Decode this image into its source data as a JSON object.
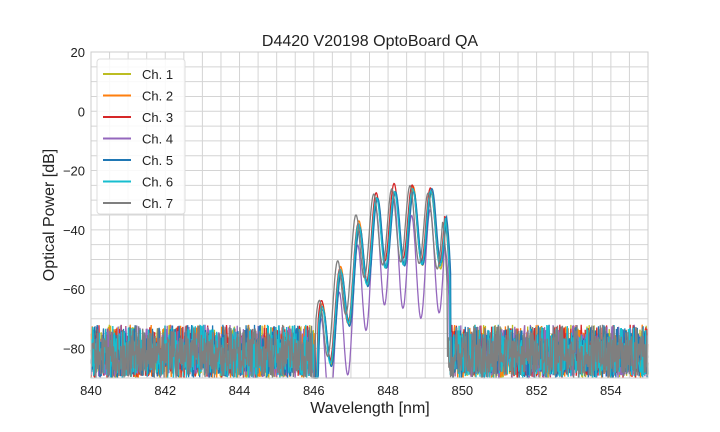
{
  "chart_data": {
    "type": "line",
    "title": "D4420 V20198 OptoBoard QA",
    "xlabel": "Wavelength [nm]",
    "ylabel": "Optical Power [dB]",
    "xlim": [
      840,
      855
    ],
    "ylim": [
      -90,
      20
    ],
    "xticks": [
      "840",
      "842",
      "844",
      "846",
      "848",
      "850",
      "852",
      "854"
    ],
    "yticks": [
      "20",
      "0",
      "−20",
      "−40",
      "−60",
      "−80"
    ],
    "grid": true,
    "legend": "top-left",
    "noise_floor_db": [
      -90,
      -72
    ],
    "series": [
      {
        "name": "Ch. 1",
        "color": "#bcbd22",
        "shift": 0.03,
        "peaks": [
          [
            846.2,
            -66
          ],
          [
            846.75,
            -53
          ],
          [
            847.25,
            -36
          ],
          [
            847.75,
            -28
          ],
          [
            848.25,
            -27
          ],
          [
            848.7,
            -26
          ],
          [
            849.2,
            -28
          ]
        ]
      },
      {
        "name": "Ch. 2",
        "color": "#ff7f0e",
        "shift": 0.02,
        "peaks": [
          [
            846.2,
            -65
          ],
          [
            846.75,
            -51
          ],
          [
            847.25,
            -35
          ],
          [
            847.75,
            -28
          ],
          [
            848.25,
            -27
          ],
          [
            848.7,
            -25
          ],
          [
            849.2,
            -27
          ]
        ]
      },
      {
        "name": "Ch. 3",
        "color": "#d62728",
        "shift": 0.0,
        "peaks": [
          [
            846.2,
            -64
          ],
          [
            846.75,
            -52
          ],
          [
            847.25,
            -36
          ],
          [
            847.75,
            -26
          ],
          [
            848.25,
            -24
          ],
          [
            848.7,
            -25
          ],
          [
            849.2,
            -26
          ]
        ]
      },
      {
        "name": "Ch. 4",
        "color": "#9467bd",
        "shift": -0.01,
        "peaks": [
          [
            846.2,
            -70
          ],
          [
            846.75,
            -60
          ],
          [
            847.25,
            -43
          ],
          [
            847.75,
            -31
          ],
          [
            848.25,
            -29
          ],
          [
            848.7,
            -36
          ],
          [
            849.2,
            -33
          ]
        ]
      },
      {
        "name": "Ch. 5",
        "color": "#1f77b4",
        "shift": 0.04,
        "peaks": [
          [
            846.2,
            -67
          ],
          [
            846.75,
            -53
          ],
          [
            847.25,
            -37
          ],
          [
            847.75,
            -28
          ],
          [
            848.25,
            -27
          ],
          [
            848.7,
            -27
          ],
          [
            849.2,
            -26
          ]
        ]
      },
      {
        "name": "Ch. 6",
        "color": "#17becf",
        "shift": 0.01,
        "peaks": [
          [
            846.2,
            -66
          ],
          [
            846.75,
            -52
          ],
          [
            847.25,
            -36
          ],
          [
            847.75,
            -28
          ],
          [
            848.25,
            -27
          ],
          [
            848.7,
            -26
          ],
          [
            849.2,
            -27
          ]
        ]
      },
      {
        "name": "Ch. 7",
        "color": "#7f7f7f",
        "shift": -0.06,
        "peaks": [
          [
            846.2,
            -64
          ],
          [
            846.75,
            -49
          ],
          [
            847.25,
            -33
          ],
          [
            847.75,
            -27
          ],
          [
            848.25,
            -26
          ],
          [
            848.7,
            -25
          ],
          [
            849.2,
            -28
          ]
        ]
      }
    ]
  }
}
